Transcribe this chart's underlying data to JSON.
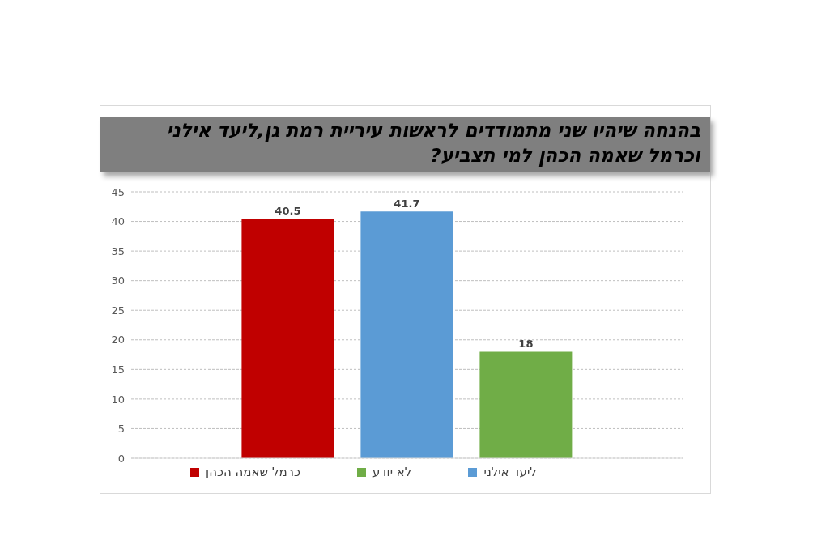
{
  "chart_data": {
    "type": "bar",
    "title": "בהנחה שיהיו שני מתמודדים לראשות עיריית רמת גן,ליעד אילני וכרמל שאמה הכהן למי תצביע?",
    "categories": [
      null
    ],
    "series": [
      {
        "name": "כרמל שאמה הכהן",
        "color": "#c00000",
        "values": [
          40.5
        ]
      },
      {
        "name": "ליעד אילני",
        "color": "#5b9bd5",
        "values": [
          41.7
        ]
      },
      {
        "name": "לא יודע",
        "color": "#70ad47",
        "values": [
          18
        ]
      }
    ],
    "ylim": [
      0,
      45
    ],
    "yticks": [
      0,
      5,
      10,
      15,
      20,
      25,
      30,
      35,
      40,
      45
    ],
    "grid": "y",
    "legend": "bottom",
    "data_labels": true
  }
}
